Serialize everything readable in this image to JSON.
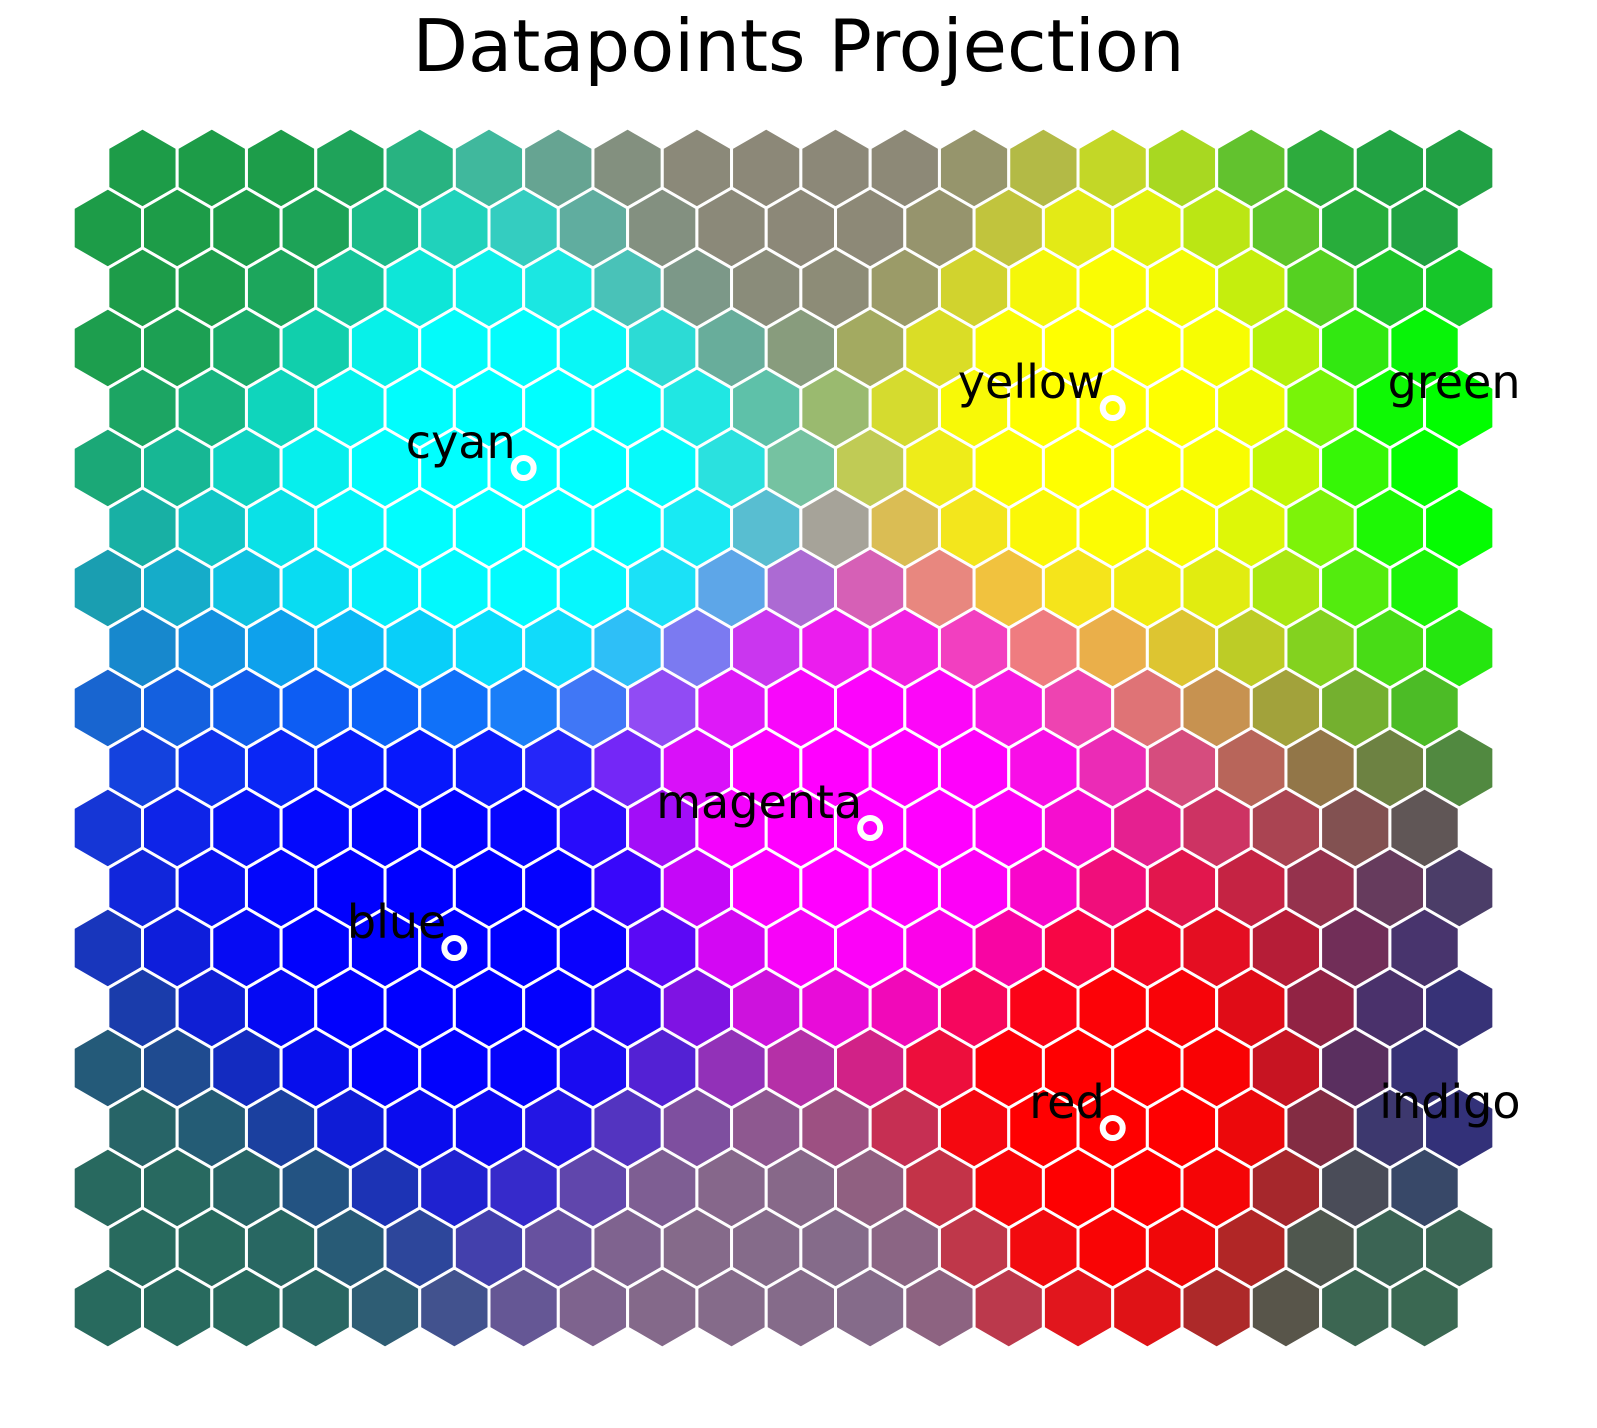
{
  "chart_data": {
    "type": "heatmap",
    "title": "Datapoints Projection",
    "grid": {
      "rows": 20,
      "cols": 20,
      "cell_shape": "hexagon",
      "cell_border_color": "#ffffff"
    },
    "corner_colors": {
      "top_left": "#1d9c48",
      "top_middle": "#8c8878",
      "top_right": "#21a044",
      "bottom_left": "#286a5e",
      "bottom_middle": "#856b8a",
      "bottom_right": "#3a6852"
    },
    "points": [
      {
        "label": "cyan",
        "col": 5.5,
        "row": 5,
        "color": "#00ffff"
      },
      {
        "label": "yellow",
        "col": 14,
        "row": 4,
        "color": "#ffff00"
      },
      {
        "label": "green",
        "col": 20,
        "row": 4,
        "color": "#00ff00"
      },
      {
        "label": "magenta",
        "col": 10.5,
        "row": 11,
        "color": "#ff00ff"
      },
      {
        "label": "blue",
        "col": 4.5,
        "row": 13,
        "color": "#0000ff"
      },
      {
        "label": "red",
        "col": 14,
        "row": 16,
        "color": "#ff0000"
      },
      {
        "label": "indigo",
        "col": 20,
        "row": 16,
        "color": "#33307a"
      }
    ],
    "legend": "none"
  }
}
